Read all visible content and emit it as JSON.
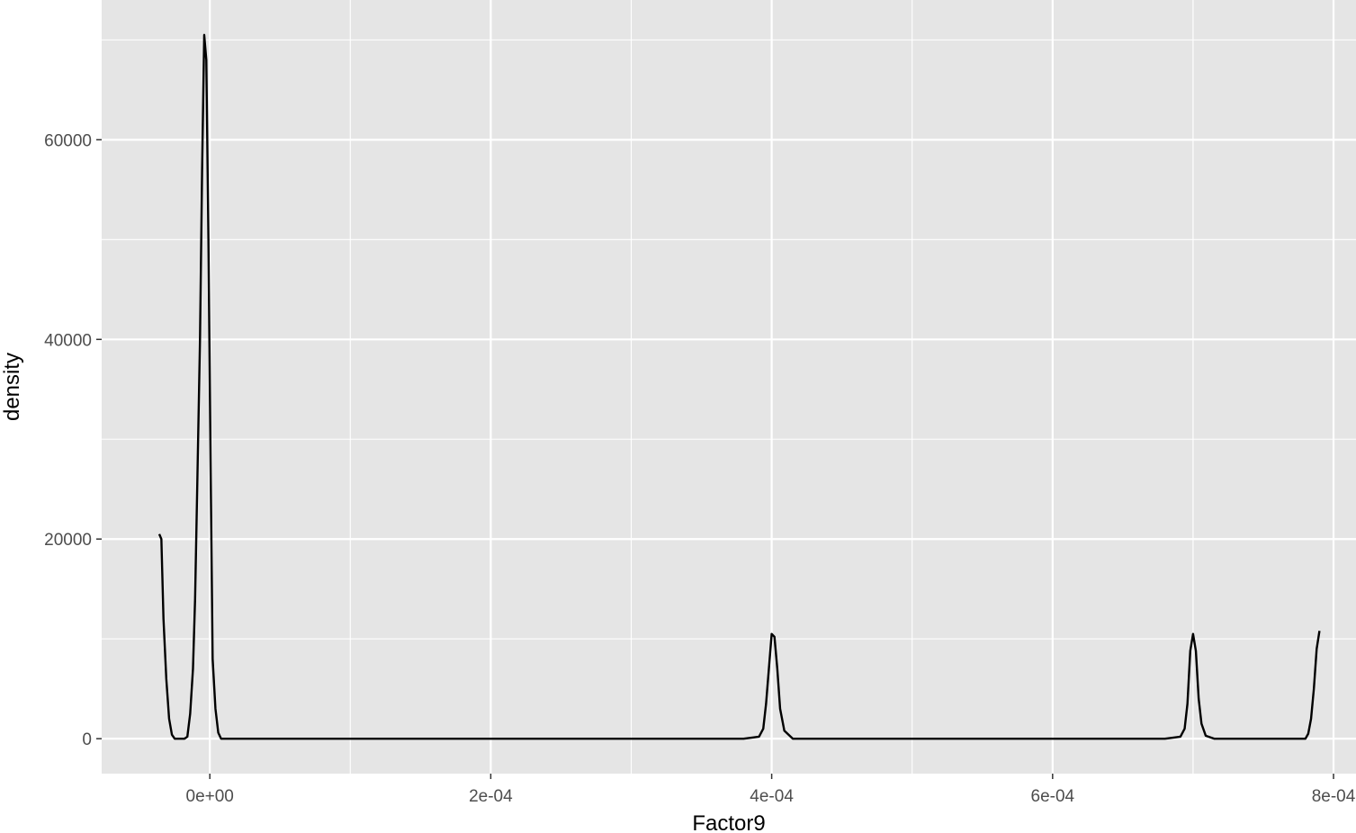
{
  "chart_data": {
    "type": "line",
    "title": "",
    "xlabel": "Factor9",
    "ylabel": "density",
    "xlim": [
      -7.7e-05,
      0.000816
    ],
    "ylim": [
      -3500,
      74000
    ],
    "grid": true,
    "panel_background": "#e5e5e5",
    "grid_color": "#ffffff",
    "line_color": "#000000",
    "x_ticks": [
      {
        "value": 0,
        "label": "0e+00"
      },
      {
        "value": 0.0002,
        "label": "2e-04"
      },
      {
        "value": 0.0004,
        "label": "4e-04"
      },
      {
        "value": 0.0006,
        "label": "6e-04"
      },
      {
        "value": 0.0008,
        "label": "8e-04"
      }
    ],
    "x_minor_ticks": [
      0.0001,
      0.0003,
      0.0005,
      0.0007
    ],
    "y_ticks": [
      {
        "value": 0,
        "label": "0"
      },
      {
        "value": 20000,
        "label": "20000"
      },
      {
        "value": 40000,
        "label": "40000"
      },
      {
        "value": 60000,
        "label": "60000"
      }
    ],
    "y_minor_ticks": [
      10000,
      30000,
      50000,
      70000
    ],
    "series": [
      {
        "x": [
          -3.6e-05,
          -3.45e-05,
          -3.3e-05,
          -3.1e-05,
          -2.9e-05,
          -2.7e-05,
          -2.5e-05,
          -2.3e-05,
          -2e-05,
          -1.8e-05,
          -1.6e-05,
          -1.4e-05,
          -1.2e-05,
          -1.05e-05,
          -9e-06,
          -7e-06,
          -5.5e-06,
          -4e-06,
          -2.5e-06,
          -1e-06,
          5e-07,
          2e-06,
          4e-06,
          6e-06,
          8e-06,
          1e-05,
          2e-05,
          5e-05,
          0.0001,
          0.00015,
          0.0002,
          0.00025,
          0.0003,
          0.00035,
          0.00038,
          0.000391,
          0.000394,
          0.000396,
          0.000398,
          0.0004,
          0.000402,
          0.000404,
          0.000406,
          0.000409,
          0.000415,
          0.00045,
          0.0005,
          0.00055,
          0.0006,
          0.00065,
          0.00068,
          0.000691,
          0.000694,
          0.000696,
          0.000698,
          0.0007,
          0.000702,
          0.000704,
          0.000706,
          0.000709,
          0.000715,
          0.00075,
          0.00078,
          0.000782,
          0.000784,
          0.000786,
          0.000788,
          0.00079
        ],
        "y": [
          20500,
          20000,
          12000,
          6000,
          2000,
          400,
          0,
          0,
          0,
          0,
          200,
          2500,
          7000,
          14000,
          25000,
          40000,
          57000,
          70500,
          68000,
          50000,
          28000,
          8000,
          3000,
          600,
          0,
          0,
          0,
          0,
          0,
          0,
          0,
          0,
          0,
          0,
          0,
          200,
          1000,
          3500,
          7000,
          10500,
          10200,
          7000,
          3000,
          800,
          0,
          0,
          0,
          0,
          0,
          0,
          0,
          200,
          1000,
          3500,
          8800,
          10500,
          8800,
          4000,
          1500,
          300,
          0,
          0,
          0,
          500,
          2000,
          5000,
          9000,
          10800
        ]
      }
    ]
  }
}
